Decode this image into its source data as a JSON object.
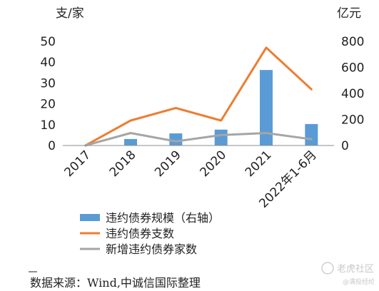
{
  "chart_data": {
    "type": "bar",
    "categories": [
      "2017",
      "2018",
      "2019",
      "2020",
      "2021",
      "2022年1-6月"
    ],
    "left_unit": "支/家",
    "right_unit": "亿元",
    "left_ticks": [
      "0",
      "10",
      "20",
      "30",
      "40",
      "50"
    ],
    "right_ticks": [
      "0",
      "200",
      "400",
      "600",
      "800"
    ],
    "ylim_left": [
      0,
      50
    ],
    "ylim_right": [
      0,
      800
    ],
    "series": [
      {
        "name": "违约债券规模（右轴）",
        "kind": "bar",
        "axis": "right",
        "color": "#5b9bd5",
        "values": [
          3,
          50,
          93,
          122,
          580,
          165
        ]
      },
      {
        "name": "违约债券支数",
        "kind": "line",
        "axis": "left",
        "color": "#ed7d31",
        "values": [
          0,
          12,
          18,
          12,
          47,
          27
        ]
      },
      {
        "name": "新增违约债券家数",
        "kind": "line",
        "axis": "left",
        "color": "#a5a5a5",
        "values": [
          0,
          6,
          2,
          5,
          6,
          3
        ]
      }
    ],
    "legend_position": "bottom",
    "grid": false
  },
  "source_note": "数据来源：Wind,中诚信国际整理",
  "watermark": {
    "main": "老虎社区",
    "sub": "@满投经纶",
    "icon": "tiger-icon"
  }
}
